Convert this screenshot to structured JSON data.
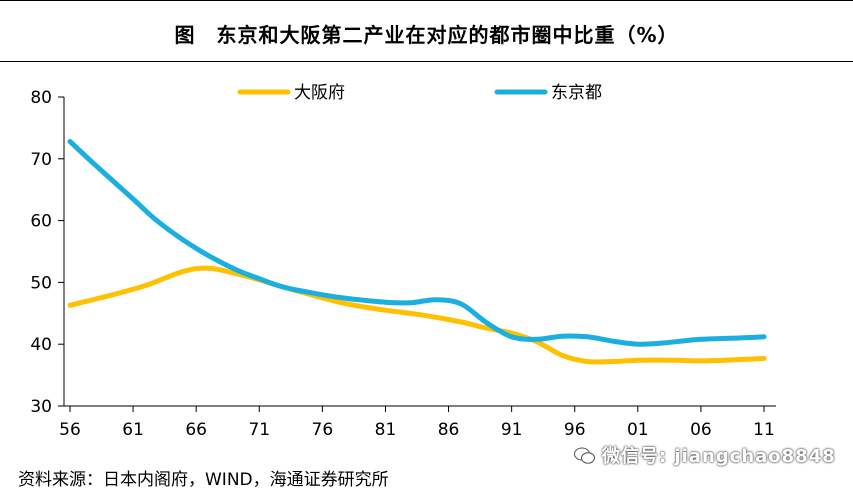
{
  "title": "图　东京和大阪第二产业在对应的都市圈中比重（%）",
  "source": "资料来源：日本内阁府，WIND，海通证券研究所",
  "watermark": "微信号: jiangchao8848",
  "chart_data": {
    "type": "line",
    "categories": [
      "56",
      "61",
      "66",
      "71",
      "76",
      "81",
      "86",
      "91",
      "96",
      "01",
      "06",
      "11"
    ],
    "ylim": [
      30,
      80
    ],
    "yticks": [
      30,
      40,
      50,
      60,
      70,
      80
    ],
    "grid": false,
    "legend_position": "top",
    "series": [
      {
        "name": "大阪府",
        "color": "#FFC000",
        "x": [
          1956,
          1959,
          1962,
          1965,
          1967,
          1969,
          1971,
          1973,
          1976,
          1978,
          1981,
          1984,
          1987,
          1989,
          1991,
          1993,
          1995,
          1997,
          1999,
          2001,
          2004,
          2006,
          2009,
          2011
        ],
        "values": [
          46.3,
          47.8,
          49.5,
          51.8,
          52.3,
          51.5,
          50.4,
          49.2,
          47.5,
          46.5,
          45.5,
          44.7,
          43.6,
          42.6,
          41.8,
          40.4,
          38.2,
          37.2,
          37.2,
          37.4,
          37.4,
          37.3,
          37.5,
          37.7
        ]
      },
      {
        "name": "东京都",
        "color": "#1AAFE0",
        "x": [
          1956,
          1958,
          1961,
          1963,
          1966,
          1969,
          1971,
          1973,
          1976,
          1978,
          1981,
          1983,
          1985,
          1987,
          1989,
          1991,
          1993,
          1995,
          1997,
          1999,
          2001,
          2003,
          2006,
          2009,
          2011
        ],
        "values": [
          72.8,
          69.0,
          63.5,
          59.8,
          55.5,
          52.2,
          50.6,
          49.2,
          48.0,
          47.4,
          46.8,
          46.7,
          47.2,
          46.5,
          43.5,
          41.2,
          40.8,
          41.3,
          41.2,
          40.5,
          40.0,
          40.2,
          40.8,
          41.0,
          41.2
        ]
      }
    ]
  }
}
